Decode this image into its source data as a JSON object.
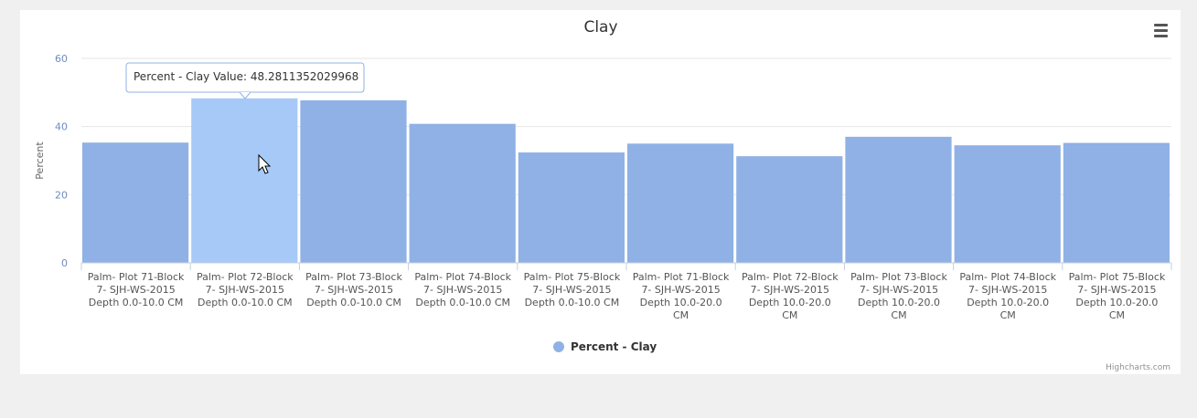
{
  "chart_data": {
    "type": "bar",
    "title": "Clay",
    "ylabel": "Percent",
    "ylim": [
      0,
      60
    ],
    "yticks": [
      0,
      20,
      40,
      60
    ],
    "grid": true,
    "categories": [
      [
        "Palm- Plot 71-Block",
        "7- SJH-WS-2015",
        "Depth 0.0-10.0 CM"
      ],
      [
        "Palm- Plot 72-Block",
        "7- SJH-WS-2015",
        "Depth 0.0-10.0 CM"
      ],
      [
        "Palm- Plot 73-Block",
        "7- SJH-WS-2015",
        "Depth 0.0-10.0 CM"
      ],
      [
        "Palm- Plot 74-Block",
        "7- SJH-WS-2015",
        "Depth 0.0-10.0 CM"
      ],
      [
        "Palm- Plot 75-Block",
        "7- SJH-WS-2015",
        "Depth 0.0-10.0 CM"
      ],
      [
        "Palm- Plot 71-Block",
        "7- SJH-WS-2015",
        "Depth 10.0-20.0",
        "CM"
      ],
      [
        "Palm- Plot 72-Block",
        "7- SJH-WS-2015",
        "Depth 10.0-20.0",
        "CM"
      ],
      [
        "Palm- Plot 73-Block",
        "7- SJH-WS-2015",
        "Depth 10.0-20.0",
        "CM"
      ],
      [
        "Palm- Plot 74-Block",
        "7- SJH-WS-2015",
        "Depth 10.0-20.0",
        "CM"
      ],
      [
        "Palm- Plot 75-Block",
        "7- SJH-WS-2015",
        "Depth 10.0-20.0",
        "CM"
      ]
    ],
    "series": [
      {
        "name": "Percent - Clay",
        "values": [
          35.3,
          48.2811352029968,
          47.7,
          40.8,
          32.4,
          35.0,
          31.3,
          37.0,
          34.5,
          35.2
        ]
      }
    ],
    "legend_position": "bottom-center",
    "hovered_index": 1,
    "tooltip": "Percent - Clay Value: 48.2811352029968",
    "credits": "Highcharts.com",
    "colors": {
      "bar": "#90b1e5",
      "bar_hover": "#a7c9f7",
      "legend_marker": "#90b1e5",
      "gridline": "#e6e6e6",
      "axis_line": "#c0d0e0",
      "tooltip_border": "#90b1e5"
    }
  },
  "menu_icon": "hamburger-menu-icon",
  "cursor_icon": "mouse-pointer-icon"
}
